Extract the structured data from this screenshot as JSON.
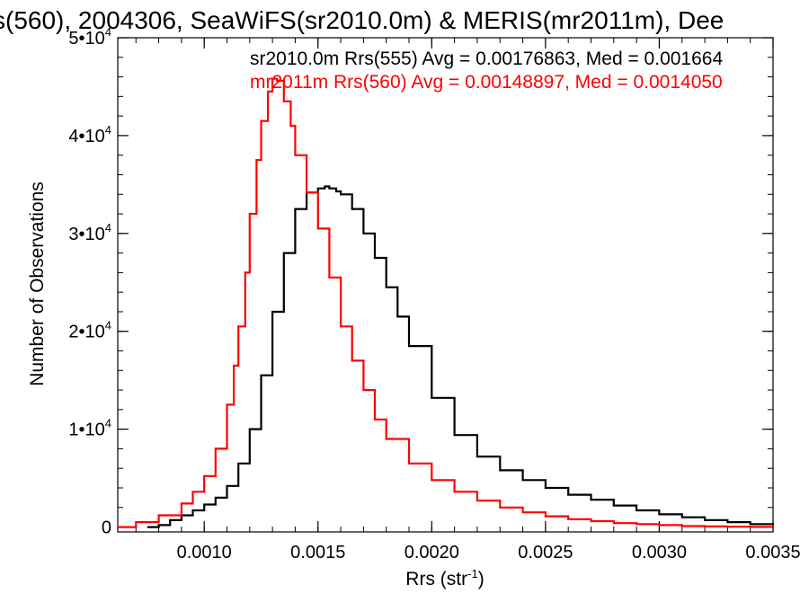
{
  "chart_data": {
    "type": "line",
    "title": "s(560), 2004306, SeaWiFS(sr2010.0m) & MERIS(mr2011m), Dee",
    "xlabel_main": "Rrs (str",
    "xlabel_sup": "-1",
    "xlabel_close": ")",
    "ylabel": "Number of Observations",
    "xlim": [
      0.00062,
      0.0035
    ],
    "ylim": [
      -500,
      50000
    ],
    "x_ticks": [
      {
        "value": 0.001,
        "label": "0.0010"
      },
      {
        "value": 0.0015,
        "label": "0.0015"
      },
      {
        "value": 0.002,
        "label": "0.0020"
      },
      {
        "value": 0.0025,
        "label": "0.0025"
      },
      {
        "value": 0.003,
        "label": "0.0030"
      },
      {
        "value": 0.0035,
        "label": "0.0035"
      }
    ],
    "y_ticks": [
      {
        "value": 0,
        "base": "0",
        "exp": ""
      },
      {
        "value": 10000,
        "base": "1•10",
        "exp": "4"
      },
      {
        "value": 20000,
        "base": "2•10",
        "exp": "4"
      },
      {
        "value": 30000,
        "base": "3•10",
        "exp": "4"
      },
      {
        "value": 40000,
        "base": "4•10",
        "exp": "4"
      },
      {
        "value": 50000,
        "base": "5•10",
        "exp": "4"
      }
    ],
    "legend_placement": "top-right",
    "series": [
      {
        "label": "sr2010.0m Rrs(555) Avg = 0.00176863, Med = 0.001664",
        "color": "#000000",
        "x": [
          0.00075,
          0.0008,
          0.00085,
          0.0009,
          0.00095,
          0.001,
          0.00105,
          0.0011,
          0.00115,
          0.0012,
          0.00125,
          0.0013,
          0.00135,
          0.0014,
          0.00145,
          0.0015,
          0.00153,
          0.00155,
          0.00158,
          0.0016,
          0.00165,
          0.0017,
          0.00175,
          0.0018,
          0.00185,
          0.0019,
          0.002,
          0.0021,
          0.0022,
          0.0023,
          0.0024,
          0.0025,
          0.0026,
          0.0027,
          0.0028,
          0.0029,
          0.003,
          0.0031,
          0.0032,
          0.0033,
          0.0034,
          0.0035
        ],
        "y": [
          0,
          200,
          700,
          1200,
          1700,
          2300,
          3000,
          4200,
          6500,
          10000,
          15500,
          22000,
          28000,
          32500,
          34200,
          34600,
          34800,
          34600,
          34300,
          34000,
          32500,
          30000,
          27500,
          24500,
          21500,
          18500,
          13200,
          9400,
          7200,
          5800,
          4800,
          4000,
          3300,
          2800,
          2200,
          1700,
          1300,
          1000,
          700,
          500,
          300,
          200
        ]
      },
      {
        "label": "mr2011m Rrs(560) Avg = 0.00148897, Med = 0.0014050",
        "color": "#ff0000",
        "x": [
          0.00062,
          0.0007,
          0.0008,
          0.0009,
          0.00095,
          0.001,
          0.00105,
          0.0011,
          0.00113,
          0.00115,
          0.00118,
          0.0012,
          0.00123,
          0.00125,
          0.00128,
          0.0013,
          0.00132,
          0.00135,
          0.00138,
          0.0014,
          0.00145,
          0.0015,
          0.00155,
          0.0016,
          0.00165,
          0.0017,
          0.00175,
          0.0018,
          0.0019,
          0.002,
          0.0021,
          0.0022,
          0.0023,
          0.0024,
          0.0025,
          0.0026,
          0.0027,
          0.0028,
          0.0029,
          0.003,
          0.0031,
          0.0032,
          0.0033,
          0.0034,
          0.0035
        ],
        "y": [
          0,
          500,
          1200,
          2400,
          3600,
          5200,
          8000,
          12500,
          16500,
          20500,
          26000,
          32000,
          37500,
          41500,
          44500,
          45800,
          45600,
          43500,
          41000,
          38000,
          34200,
          30500,
          25500,
          20500,
          17000,
          14000,
          11000,
          9000,
          6500,
          4800,
          3600,
          2700,
          2000,
          1500,
          1100,
          800,
          600,
          400,
          300,
          200,
          100,
          60,
          30,
          10,
          0
        ]
      }
    ]
  }
}
